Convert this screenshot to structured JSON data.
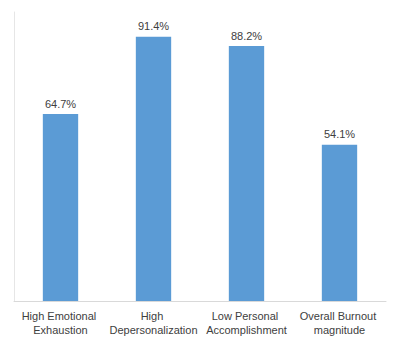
{
  "chart_data": {
    "type": "bar",
    "categories": [
      "High Emotional Exhaustion",
      "High Depersonalization",
      "Low Personal Accomplishment",
      "Overall Burnout magnitude"
    ],
    "values": [
      64.7,
      91.4,
      88.2,
      54.1
    ],
    "value_labels": [
      "64.7%",
      "91.4%",
      "88.2%",
      "54.1%"
    ],
    "color": "#5b9bd5",
    "ylim": [
      0,
      100
    ],
    "grid": false,
    "data_labels": true,
    "tick_labels": "x"
  }
}
